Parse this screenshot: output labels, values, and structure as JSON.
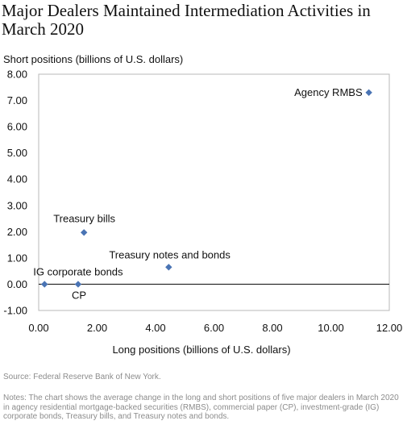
{
  "chart_data": {
    "type": "scatter",
    "title": "Major Dealers Maintained Intermediation Activities in March 2020",
    "xlabel": "Long positions (billions of U.S. dollars)",
    "ylabel": "Short positions (billions of U.S. dollars)",
    "xlim": [
      0,
      12
    ],
    "ylim": [
      -1,
      8
    ],
    "xticks": [
      "0.00",
      "2.00",
      "4.00",
      "6.00",
      "8.00",
      "10.00",
      "12.00"
    ],
    "yticks": [
      "8.00",
      "7.00",
      "6.00",
      "5.00",
      "4.00",
      "3.00",
      "2.00",
      "1.00",
      "0.00",
      "-1.00"
    ],
    "grid": false,
    "marker_color": "#4a74b4",
    "points": [
      {
        "label": "Agency RMBS",
        "x": 11.3,
        "y": 7.3
      },
      {
        "label": "Treasury bills",
        "x": 1.55,
        "y": 1.97
      },
      {
        "label": "Treasury notes and bonds",
        "x": 4.45,
        "y": 0.65
      },
      {
        "label": "IG corporate bonds",
        "x": 0.2,
        "y": 0.0
      },
      {
        "label": "CP",
        "x": 1.35,
        "y": 0.0
      }
    ]
  },
  "source": "Source: Federal Reserve Bank of New York.",
  "notes": "Notes: The chart shows the average change in the long and short positions of five major dealers in March 2020 in agency residential mortgage-backed securities (RMBS), commercial paper (CP), investment-grade (IG) corporate bonds, Treasury bills, and Treasury notes and bonds."
}
